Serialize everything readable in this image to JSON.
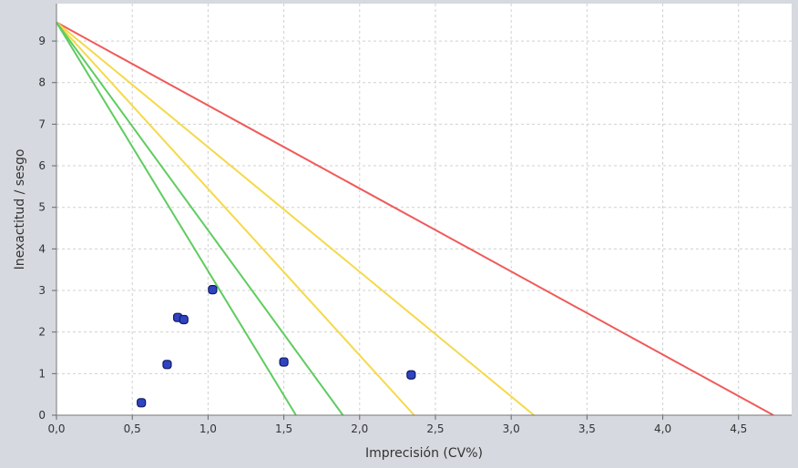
{
  "chart_data": {
    "type": "scatter",
    "xlabel": "Imprecisión (CV%)",
    "ylabel": "Inexactitud / sesgo",
    "xlim": [
      0,
      4.85
    ],
    "ylim": [
      0,
      9.9
    ],
    "x_ticks": [
      0,
      0.5,
      1.0,
      1.5,
      2.0,
      2.5,
      3.0,
      3.5,
      4.0,
      4.5
    ],
    "x_tick_labels": [
      "0,0",
      "0,5",
      "1,0",
      "1,5",
      "2,0",
      "2,5",
      "3,0",
      "3,5",
      "4,0",
      "4,5"
    ],
    "y_ticks": [
      0,
      1,
      2,
      3,
      4,
      5,
      6,
      7,
      8,
      9
    ],
    "y_tick_labels": [
      "0",
      "1",
      "2",
      "3",
      "4",
      "5",
      "6",
      "7",
      "8",
      "9"
    ],
    "grid": true,
    "colors": {
      "plot_background": "#ffffff",
      "outer_background": "#d6d9df",
      "grid": "#d0d0d0",
      "red": "#f05a5a",
      "yellow": "#f5d94a",
      "green": "#5fcc5f",
      "point_fill": "#2f44c2",
      "point_stroke": "#101a60"
    },
    "limit_lines": [
      {
        "color": "red",
        "from": [
          0,
          9.45
        ],
        "to": [
          4.73,
          0
        ]
      },
      {
        "color": "yellow",
        "from": [
          0,
          9.45
        ],
        "to": [
          3.15,
          0
        ]
      },
      {
        "color": "yellow",
        "from": [
          0,
          9.45
        ],
        "to": [
          2.36,
          0
        ]
      },
      {
        "color": "green",
        "from": [
          0,
          9.45
        ],
        "to": [
          1.89,
          0
        ]
      },
      {
        "color": "green",
        "from": [
          0,
          9.45
        ],
        "to": [
          1.58,
          0
        ]
      }
    ],
    "series": [
      {
        "points": [
          {
            "x": 0.56,
            "y": 0.3
          },
          {
            "x": 0.73,
            "y": 1.22
          },
          {
            "x": 0.8,
            "y": 2.35
          },
          {
            "x": 0.84,
            "y": 2.3
          },
          {
            "x": 1.03,
            "y": 3.02
          },
          {
            "x": 1.5,
            "y": 1.28
          },
          {
            "x": 2.34,
            "y": 0.97
          }
        ]
      }
    ]
  }
}
